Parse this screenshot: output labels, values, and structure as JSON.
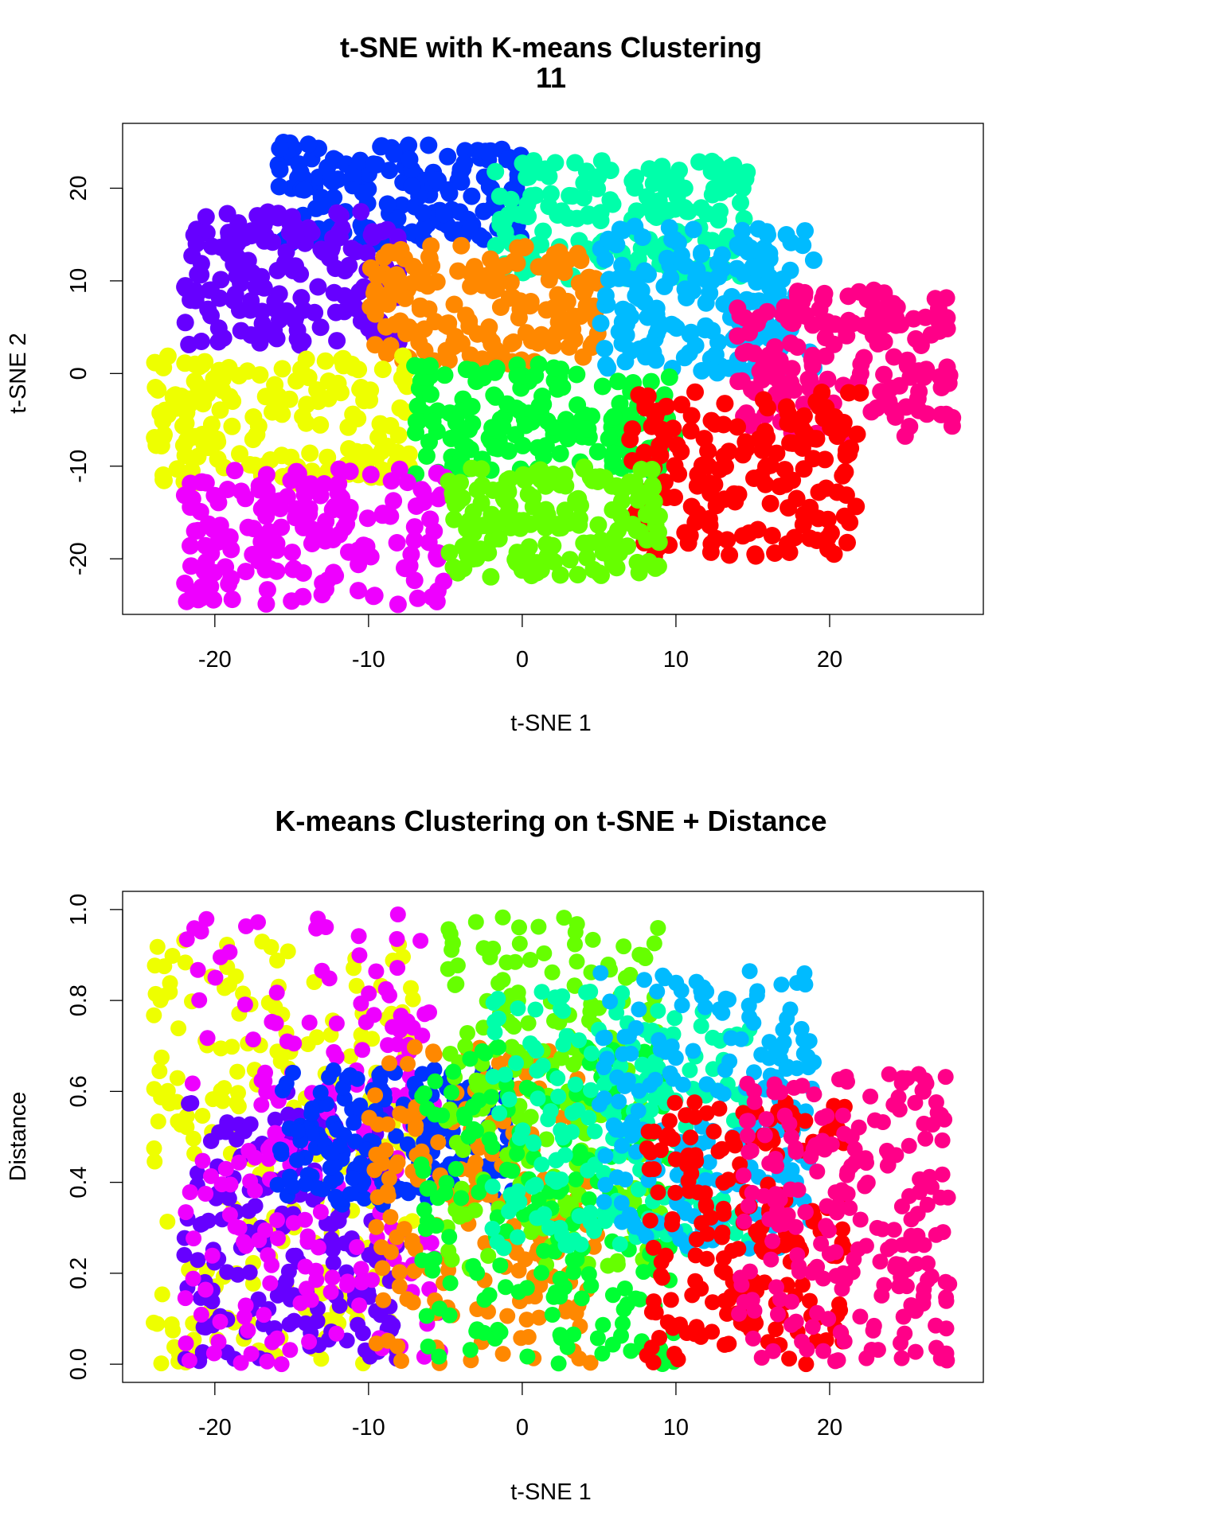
{
  "chart_data": [
    {
      "type": "scatter",
      "title": "t-SNE with K-means Clustering",
      "subtitle": "11",
      "xlabel": "t-SNE 1",
      "ylabel": "t-SNE 2",
      "xlim": [
        -26,
        30
      ],
      "ylim": [
        -26,
        27
      ],
      "xticks": [
        -20,
        -10,
        0,
        10,
        20
      ],
      "yticks": [
        -20,
        -10,
        0,
        10,
        20
      ],
      "xtick_labels": [
        "-20",
        "-10",
        "0",
        "10",
        "20"
      ],
      "ytick_labels": [
        "-20",
        "-10",
        "0",
        "10",
        "20"
      ],
      "grid": false,
      "legend": "none",
      "series": [
        {
          "color": "#0033FF",
          "x_range": [
            -16,
            0
          ],
          "y_range": [
            14,
            25
          ],
          "count": 170
        },
        {
          "color": "#00FFAA",
          "x_range": [
            -2,
            15
          ],
          "y_range": [
            10,
            23
          ],
          "count": 170
        },
        {
          "color": "#6600FF",
          "x_range": [
            -22,
            -8
          ],
          "y_range": [
            3,
            18
          ],
          "count": 170
        },
        {
          "color": "#FF8800",
          "x_range": [
            -10,
            5
          ],
          "y_range": [
            1,
            14
          ],
          "count": 170
        },
        {
          "color": "#00BBFF",
          "x_range": [
            5,
            19
          ],
          "y_range": [
            0,
            16
          ],
          "count": 170
        },
        {
          "color": "#FF0088",
          "x_range": [
            14,
            28
          ],
          "y_range": [
            -7,
            9
          ],
          "count": 170
        },
        {
          "color": "#EEFF00",
          "x_range": [
            -24,
            -7
          ],
          "y_range": [
            -12,
            2
          ],
          "count": 170
        },
        {
          "color": "#00FF33",
          "x_range": [
            -7,
            10
          ],
          "y_range": [
            -11,
            1
          ],
          "count": 170
        },
        {
          "color": "#FF0000",
          "x_range": [
            7,
            22
          ],
          "y_range": [
            -20,
            -2
          ],
          "count": 170
        },
        {
          "color": "#EE00FF",
          "x_range": [
            -22,
            -5
          ],
          "y_range": [
            -25,
            -10
          ],
          "count": 170
        },
        {
          "color": "#66FF00",
          "x_range": [
            -5,
            9
          ],
          "y_range": [
            -22,
            -10
          ],
          "count": 170
        }
      ]
    },
    {
      "type": "scatter",
      "title": "K-means Clustering on t-SNE + Distance",
      "xlabel": "t-SNE 1",
      "ylabel": "Distance",
      "xlim": [
        -26,
        30
      ],
      "ylim": [
        -0.04,
        1.04
      ],
      "xticks": [
        -20,
        -10,
        0,
        10,
        20
      ],
      "yticks": [
        0.0,
        0.2,
        0.4,
        0.6,
        0.8,
        1.0
      ],
      "xtick_labels": [
        "-20",
        "-10",
        "0",
        "10",
        "20"
      ],
      "ytick_labels": [
        "0.0",
        "0.2",
        "0.4",
        "0.6",
        "0.8",
        "1.0"
      ],
      "grid": false,
      "legend": "none",
      "series": [
        {
          "color": "#EEFF00",
          "x_range": [
            -24,
            -7
          ],
          "y_range": [
            0.0,
            0.94
          ],
          "count": 220
        },
        {
          "color": "#6600FF",
          "x_range": [
            -22,
            -8
          ],
          "y_range": [
            0.0,
            0.6
          ],
          "count": 200
        },
        {
          "color": "#EE00FF",
          "x_range": [
            -22,
            -5
          ],
          "y_range": [
            0.0,
            0.99
          ],
          "count": 200
        },
        {
          "color": "#0033FF",
          "x_range": [
            -16,
            0
          ],
          "y_range": [
            0.35,
            0.65
          ],
          "count": 200
        },
        {
          "color": "#FF8800",
          "x_range": [
            -10,
            5
          ],
          "y_range": [
            0.0,
            0.7
          ],
          "count": 200
        },
        {
          "color": "#66FF00",
          "x_range": [
            -5,
            9
          ],
          "y_range": [
            0.2,
            0.99
          ],
          "count": 200
        },
        {
          "color": "#00FF33",
          "x_range": [
            -7,
            10
          ],
          "y_range": [
            0.0,
            0.7
          ],
          "count": 200
        },
        {
          "color": "#00FFAA",
          "x_range": [
            -2,
            15
          ],
          "y_range": [
            0.25,
            0.82
          ],
          "count": 200
        },
        {
          "color": "#00BBFF",
          "x_range": [
            5,
            19
          ],
          "y_range": [
            0.25,
            0.87
          ],
          "count": 200
        },
        {
          "color": "#FF0000",
          "x_range": [
            8,
            21
          ],
          "y_range": [
            0.0,
            0.58
          ],
          "count": 200
        },
        {
          "color": "#FF0088",
          "x_range": [
            14,
            28
          ],
          "y_range": [
            0.0,
            0.64
          ],
          "count": 220
        }
      ]
    }
  ]
}
